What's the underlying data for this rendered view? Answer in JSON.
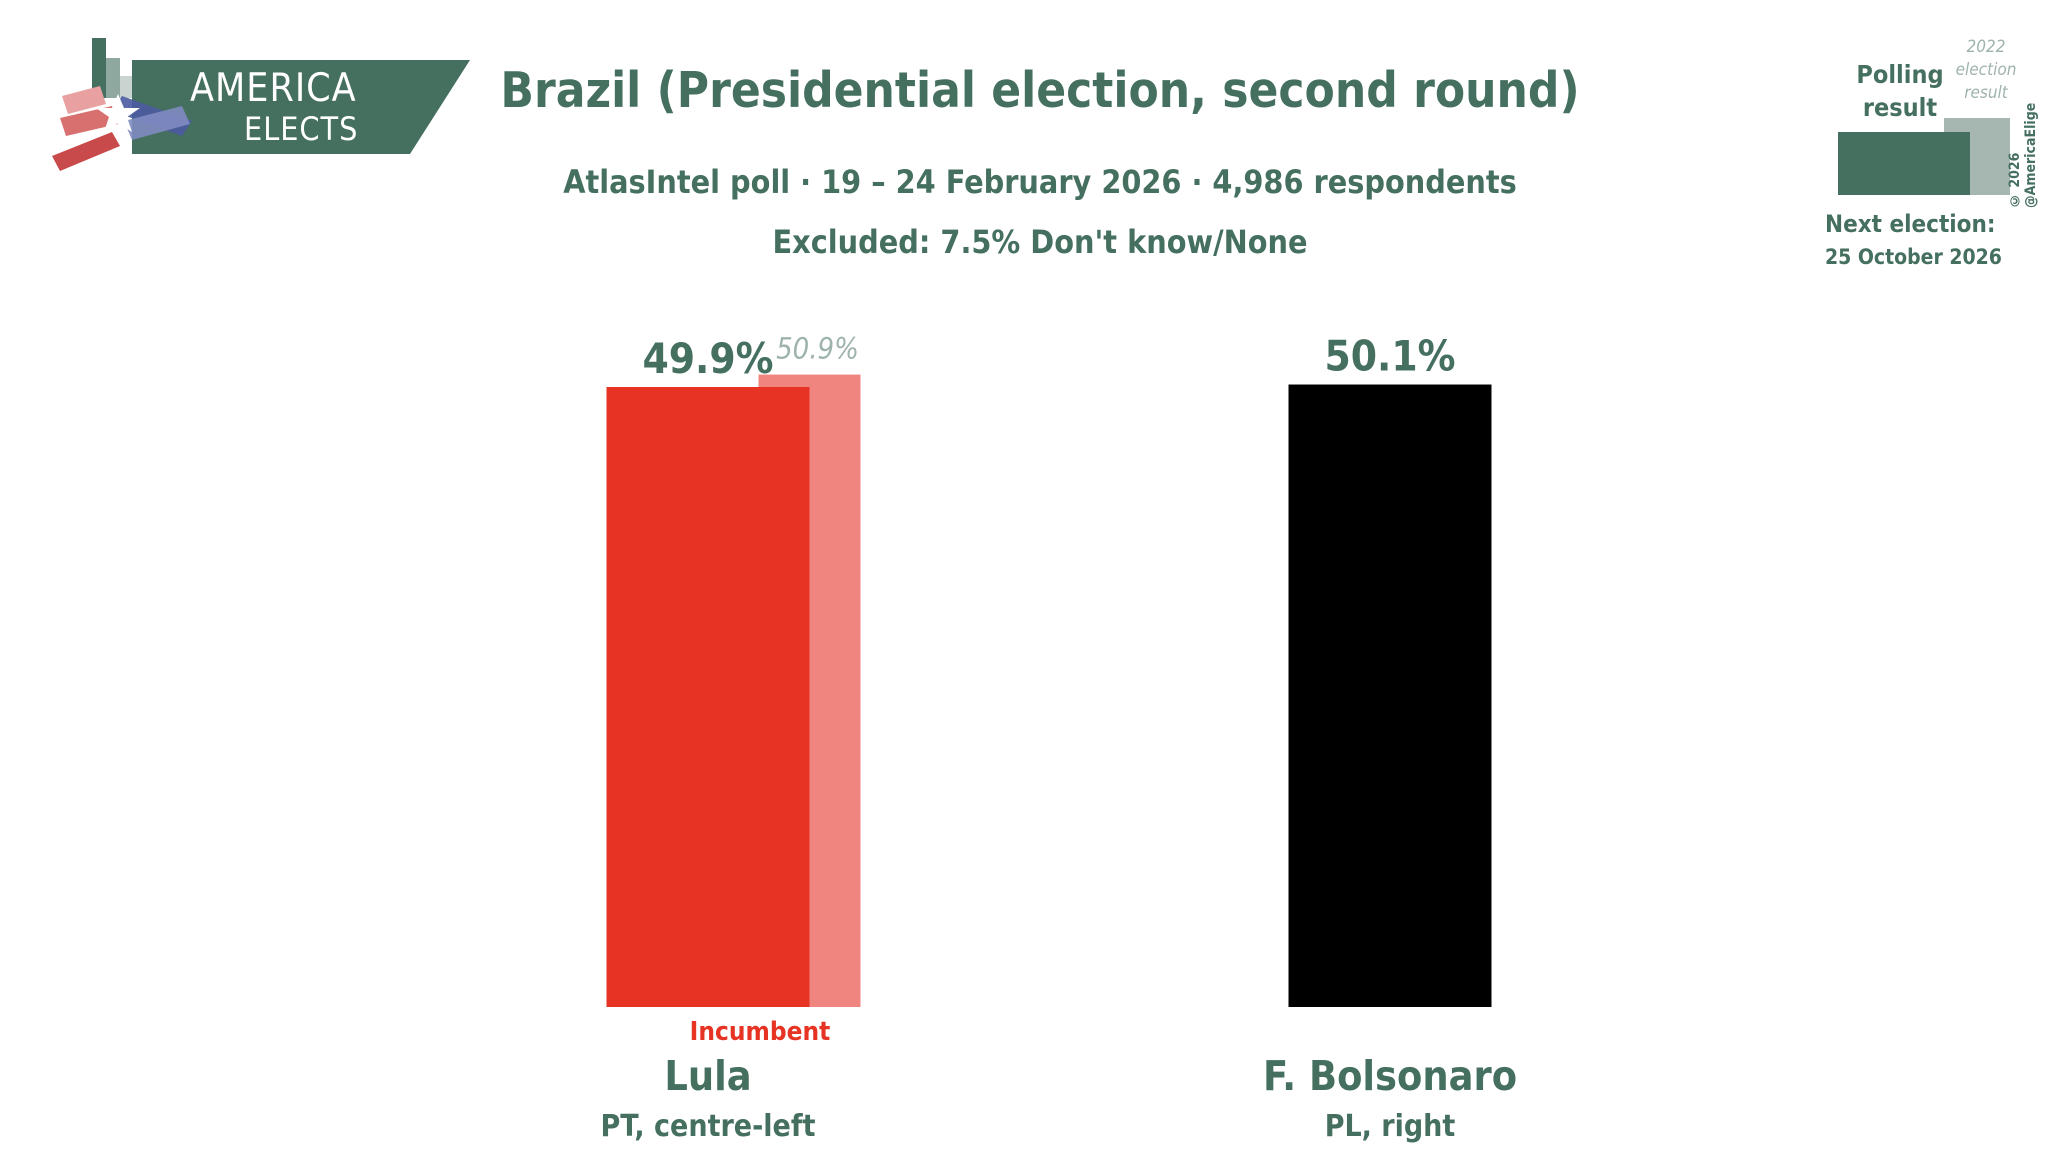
{
  "header": {
    "title": "Brazil (Presidential election, second round)",
    "subtitle": "AtlasIntel poll · 19 – 24 February 2026 · 4,986 respondents",
    "excluded": "Excluded: 7.5% Don't know/None"
  },
  "logo": {
    "line1": "AMERICA",
    "line2": "ELECTS"
  },
  "legend": {
    "polling_label_1": "Polling",
    "polling_label_2": "result",
    "previous_label_1": "2022",
    "previous_label_2": "election",
    "previous_label_3": "result",
    "next_election_label": "Next election:",
    "next_election_date": "25 October 2026",
    "copyright": "© 2026 @AmericaElige"
  },
  "colors": {
    "accent": "#45705f",
    "lula": "#e63323",
    "lula_previous": "#f08580",
    "bolsonaro": "#000000",
    "incumbent": "#e63323"
  },
  "chart_data": {
    "type": "bar",
    "ylim": [
      0,
      60
    ],
    "categories": [
      "Lula",
      "F. Bolsonaro"
    ],
    "party_labels": [
      "PT, centre-left",
      "PL, right"
    ],
    "series": [
      {
        "name": "Polling result",
        "values": [
          49.9,
          50.1
        ],
        "labels": [
          "49.9%",
          "50.1%"
        ]
      },
      {
        "name": "2022 election result",
        "values": [
          50.9,
          null
        ],
        "labels": [
          "50.9%",
          ""
        ]
      }
    ],
    "annotations": [
      {
        "category": "Lula",
        "text": "Incumbent"
      }
    ]
  }
}
